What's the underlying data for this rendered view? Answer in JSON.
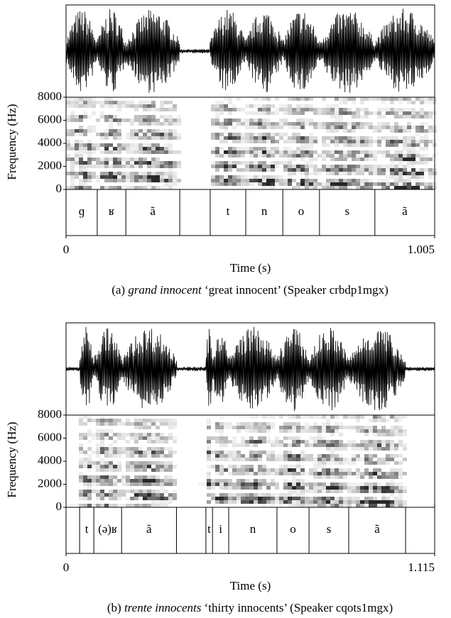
{
  "panels": [
    {
      "ylabel": "Frequency (Hz)",
      "ylim": [
        0,
        8000
      ],
      "yticks": [
        0,
        2000,
        4000,
        6000,
        8000
      ],
      "xlabel": "Time (s)",
      "xlim": [
        0,
        1.005
      ],
      "xticks": [
        0,
        1.005
      ],
      "segments": {
        "boundaries": [
          0.085,
          0.163,
          0.31,
          0.393,
          0.49,
          0.591,
          0.691,
          0.842
        ],
        "labels": [
          "ɡ",
          "ʁ",
          "ã",
          null,
          "t",
          "n",
          "o",
          "s",
          "ã"
        ]
      },
      "caption": {
        "prefix": "(a)",
        "italic": "grand innocent",
        "suffix": "‘great innocent’ (Speaker crbdp1mgx)"
      }
    },
    {
      "ylabel": "Frequency (Hz)",
      "ylim": [
        0,
        8000
      ],
      "yticks": [
        0,
        2000,
        4000,
        6000,
        8000
      ],
      "xlabel": "Time (s)",
      "xlim": [
        0,
        1.115
      ],
      "xticks": [
        0,
        1.115
      ],
      "segments": {
        "boundaries": [
          0.041,
          0.084,
          0.168,
          0.334,
          0.423,
          0.443,
          0.492,
          0.638,
          0.735,
          0.855,
          1.027
        ],
        "labels": [
          null,
          "t",
          "(ə)ʁ",
          "ã",
          null,
          "t",
          "i",
          "n",
          "o",
          "s",
          "ã",
          null
        ]
      },
      "caption": {
        "prefix": "(b)",
        "italic": "trente innocents",
        "suffix": "‘thirty innocents’ (Speaker cqots1mgx)"
      }
    }
  ]
}
